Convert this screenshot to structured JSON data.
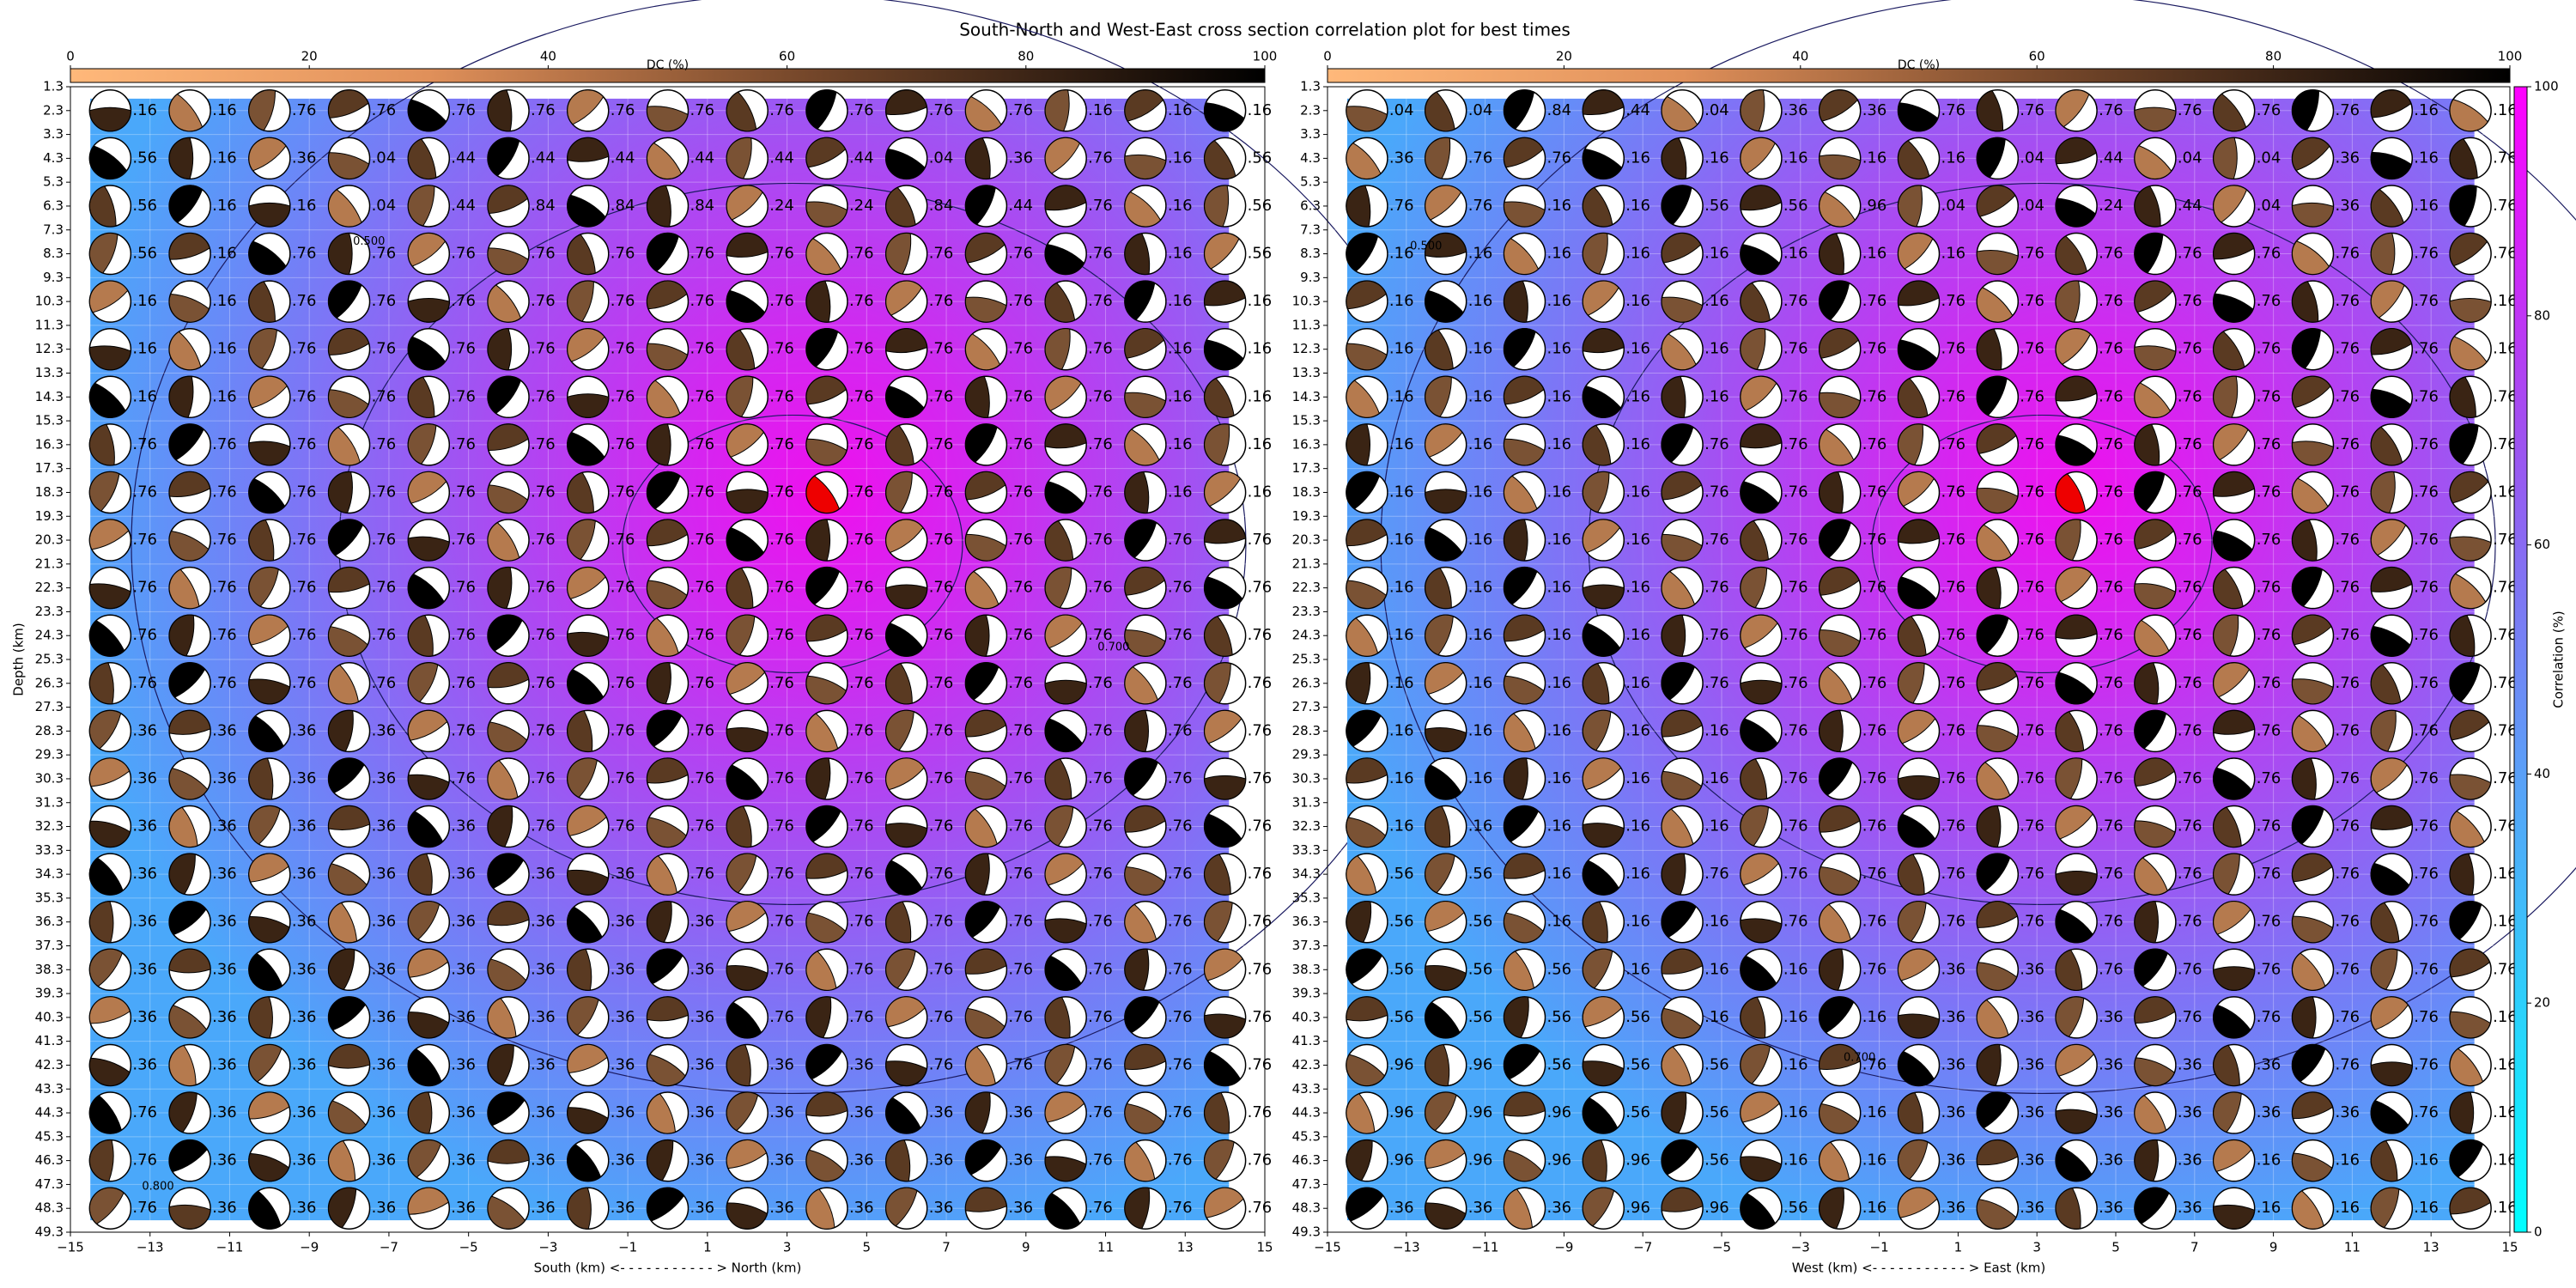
{
  "figure": {
    "title": "South-North and West-East cross section correlation plot for best times"
  },
  "chart_data": [
    {
      "type": "beachball",
      "xlabel": "South (km) <- - - - - - - - - - - > North (km)",
      "ylabel": "Depth (km)",
      "xlim": [
        -15,
        15
      ],
      "ylim": [
        49.3,
        1.3
      ],
      "grid": true,
      "xticks": [
        {
          "value": -15,
          "label": "−15"
        },
        {
          "value": -13,
          "label": "−13"
        },
        {
          "value": -11,
          "label": "−11"
        },
        {
          "value": -9,
          "label": "−9"
        },
        {
          "value": -7,
          "label": "−7"
        },
        {
          "value": -5,
          "label": "−5"
        },
        {
          "value": -3,
          "label": "−3"
        },
        {
          "value": -1,
          "label": "−1"
        },
        1,
        3,
        5,
        7,
        9,
        11,
        13,
        15
      ],
      "yticks": [
        1.3,
        2.3,
        3.3,
        4.3,
        5.3,
        6.3,
        7.3,
        8.3,
        9.3,
        10.3,
        11.3,
        12.3,
        13.3,
        14.3,
        15.3,
        16.3,
        17.3,
        18.3,
        19.3,
        20.3,
        21.3,
        22.3,
        23.3,
        24.3,
        25.3,
        26.3,
        27.3,
        28.3,
        29.3,
        30.3,
        31.3,
        32.3,
        33.3,
        34.3,
        35.3,
        36.3,
        37.3,
        38.3,
        39.3,
        40.3,
        41.3,
        42.3,
        43.3,
        44.3,
        45.3,
        46.3,
        47.3,
        48.3,
        49.3
      ],
      "x": [
        -14,
        -12,
        -10,
        -8,
        -6,
        -4,
        -2,
        0,
        2,
        4,
        6,
        8,
        10,
        12,
        14
      ],
      "depths": [
        2.3,
        4.3,
        6.3,
        8.3,
        10.3,
        12.3,
        14.3,
        16.3,
        18.3,
        20.3,
        22.3,
        24.3,
        26.3,
        28.3,
        30.3,
        32.3,
        34.3,
        36.3,
        38.3,
        40.3,
        42.3,
        44.3,
        46.3,
        48.3
      ],
      "best": [
        4,
        18.3
      ],
      "contour_labels": [
        "0.500",
        "0.700",
        "0.800"
      ],
      "dc_colorbar": {
        "label": "DC (%)",
        "lim": [
          0,
          100
        ],
        "ticks": [
          0,
          20,
          40,
          60,
          80,
          100
        ]
      },
      "labels": [
        [
          ".16",
          ".16",
          ".76",
          ".76",
          ".76",
          ".76",
          ".76",
          ".76",
          ".76",
          ".76",
          ".76",
          ".76",
          ".16",
          ".16",
          ".16"
        ],
        [
          ".56",
          ".16",
          ".36",
          ".04",
          ".44",
          ".44",
          ".44",
          ".44",
          ".44",
          ".44",
          ".04",
          ".36",
          ".76",
          ".16",
          ".56"
        ],
        [
          ".56",
          ".16",
          ".16",
          ".04",
          ".44",
          ".84",
          ".84",
          ".84",
          ".24",
          ".24",
          ".84",
          ".44",
          ".76",
          ".16",
          ".56"
        ],
        [
          ".56",
          ".16",
          ".76",
          ".76",
          ".76",
          ".76",
          ".76",
          ".76",
          ".76",
          ".76",
          ".76",
          ".76",
          ".76",
          ".16",
          ".56"
        ],
        [
          ".16",
          ".16",
          ".76",
          ".76",
          ".76",
          ".76",
          ".76",
          ".76",
          ".76",
          ".76",
          ".76",
          ".76",
          ".76",
          ".16",
          ".16"
        ],
        [
          ".16",
          ".16",
          ".76",
          ".76",
          ".76",
          ".76",
          ".76",
          ".76",
          ".76",
          ".76",
          ".76",
          ".76",
          ".76",
          ".16",
          ".16"
        ],
        [
          ".16",
          ".16",
          ".76",
          ".76",
          ".76",
          ".76",
          ".76",
          ".76",
          ".76",
          ".76",
          ".76",
          ".76",
          ".76",
          ".16",
          ".16"
        ],
        [
          ".76",
          ".76",
          ".76",
          ".76",
          ".76",
          ".76",
          ".76",
          ".76",
          ".76",
          ".76",
          ".76",
          ".76",
          ".76",
          ".16",
          ".16"
        ],
        [
          ".76",
          ".76",
          ".76",
          ".76",
          ".76",
          ".76",
          ".76",
          ".76",
          ".76",
          ".76",
          ".76",
          ".76",
          ".76",
          ".16",
          ".16"
        ],
        [
          ".76",
          ".76",
          ".76",
          ".76",
          ".76",
          ".76",
          ".76",
          ".76",
          ".76",
          ".76",
          ".76",
          ".76",
          ".76",
          ".76",
          ".76"
        ],
        [
          ".76",
          ".76",
          ".76",
          ".76",
          ".76",
          ".76",
          ".76",
          ".76",
          ".76",
          ".76",
          ".76",
          ".76",
          ".76",
          ".76",
          ".76"
        ],
        [
          ".76",
          ".76",
          ".76",
          ".76",
          ".76",
          ".76",
          ".76",
          ".76",
          ".76",
          ".76",
          ".76",
          ".76",
          ".76",
          ".76",
          ".76"
        ],
        [
          ".76",
          ".76",
          ".76",
          ".76",
          ".76",
          ".76",
          ".76",
          ".76",
          ".76",
          ".76",
          ".76",
          ".76",
          ".76",
          ".76",
          ".76"
        ],
        [
          ".36",
          ".36",
          ".36",
          ".36",
          ".76",
          ".76",
          ".76",
          ".76",
          ".76",
          ".76",
          ".76",
          ".76",
          ".76",
          ".76",
          ".76"
        ],
        [
          ".36",
          ".36",
          ".36",
          ".36",
          ".76",
          ".76",
          ".76",
          ".76",
          ".76",
          ".76",
          ".76",
          ".76",
          ".76",
          ".76",
          ".76"
        ],
        [
          ".36",
          ".36",
          ".36",
          ".36",
          ".36",
          ".76",
          ".76",
          ".76",
          ".76",
          ".76",
          ".76",
          ".76",
          ".76",
          ".76",
          ".76"
        ],
        [
          ".36",
          ".36",
          ".36",
          ".36",
          ".36",
          ".36",
          ".36",
          ".76",
          ".76",
          ".76",
          ".76",
          ".76",
          ".76",
          ".76",
          ".76"
        ],
        [
          ".36",
          ".36",
          ".36",
          ".36",
          ".36",
          ".36",
          ".36",
          ".36",
          ".76",
          ".76",
          ".76",
          ".76",
          ".76",
          ".76",
          ".76"
        ],
        [
          ".36",
          ".36",
          ".36",
          ".36",
          ".36",
          ".36",
          ".36",
          ".36",
          ".76",
          ".76",
          ".76",
          ".76",
          ".76",
          ".76",
          ".76"
        ],
        [
          ".36",
          ".36",
          ".36",
          ".36",
          ".36",
          ".36",
          ".36",
          ".36",
          ".76",
          ".76",
          ".76",
          ".76",
          ".76",
          ".76",
          ".76"
        ],
        [
          ".36",
          ".36",
          ".36",
          ".36",
          ".36",
          ".36",
          ".36",
          ".36",
          ".36",
          ".36",
          ".76",
          ".76",
          ".76",
          ".76",
          ".76"
        ],
        [
          ".76",
          ".36",
          ".36",
          ".36",
          ".36",
          ".36",
          ".36",
          ".36",
          ".36",
          ".36",
          ".36",
          ".36",
          ".76",
          ".76",
          ".76"
        ],
        [
          ".76",
          ".36",
          ".36",
          ".36",
          ".36",
          ".36",
          ".36",
          ".36",
          ".36",
          ".36",
          ".36",
          ".36",
          ".76",
          ".76",
          ".76"
        ],
        [
          ".76",
          ".36",
          ".36",
          ".36",
          ".36",
          ".36",
          ".36",
          ".36",
          ".36",
          ".36",
          ".36",
          ".36",
          ".76",
          ".76",
          ".76"
        ]
      ]
    },
    {
      "type": "beachball",
      "xlabel": "West (km) <- - - - - - - - - - - > East (km)",
      "xlim": [
        -15,
        15
      ],
      "ylim": [
        49.3,
        1.3
      ],
      "grid": true,
      "xticks": [
        {
          "value": -15,
          "label": "−15"
        },
        {
          "value": -13,
          "label": "−13"
        },
        {
          "value": -11,
          "label": "−11"
        },
        {
          "value": -9,
          "label": "−9"
        },
        {
          "value": -7,
          "label": "−7"
        },
        {
          "value": -5,
          "label": "−5"
        },
        {
          "value": -3,
          "label": "−3"
        },
        {
          "value": -1,
          "label": "−1"
        },
        1,
        3,
        5,
        7,
        9,
        11,
        13,
        15
      ],
      "yticks": [
        1.3,
        2.3,
        3.3,
        4.3,
        5.3,
        6.3,
        7.3,
        8.3,
        9.3,
        10.3,
        11.3,
        12.3,
        13.3,
        14.3,
        15.3,
        16.3,
        17.3,
        18.3,
        19.3,
        20.3,
        21.3,
        22.3,
        23.3,
        24.3,
        25.3,
        26.3,
        27.3,
        28.3,
        29.3,
        30.3,
        31.3,
        32.3,
        33.3,
        34.3,
        35.3,
        36.3,
        37.3,
        38.3,
        39.3,
        40.3,
        41.3,
        42.3,
        43.3,
        44.3,
        45.3,
        46.3,
        47.3,
        48.3,
        49.3
      ],
      "x": [
        -14,
        -12,
        -10,
        -8,
        -6,
        -4,
        -2,
        0,
        2,
        4,
        6,
        8,
        10,
        12,
        14
      ],
      "depths": [
        2.3,
        4.3,
        6.3,
        8.3,
        10.3,
        12.3,
        14.3,
        16.3,
        18.3,
        20.3,
        22.3,
        24.3,
        26.3,
        28.3,
        30.3,
        32.3,
        34.3,
        36.3,
        38.3,
        40.3,
        42.3,
        44.3,
        46.3,
        48.3
      ],
      "best": [
        4,
        18.3
      ],
      "contour_labels": [
        "0.500",
        "0.700"
      ],
      "dc_colorbar": {
        "label": "DC (%)",
        "lim": [
          0,
          100
        ],
        "ticks": [
          0,
          20,
          40,
          60,
          80,
          100
        ]
      },
      "corr_colorbar": {
        "label": "Correlation (%)",
        "lim": [
          0,
          100
        ],
        "ticks": [
          0,
          20,
          40,
          60,
          80,
          100
        ]
      },
      "labels": [
        [
          ".04",
          ".04",
          ".84",
          ".44",
          ".04",
          ".36",
          ".36",
          ".76",
          ".76",
          ".76",
          ".76",
          ".76",
          ".76",
          ".16",
          ".16"
        ],
        [
          ".36",
          ".76",
          ".76",
          ".16",
          ".16",
          ".16",
          ".16",
          ".16",
          ".04",
          ".44",
          ".04",
          ".04",
          ".36",
          ".16",
          ".76"
        ],
        [
          ".76",
          ".76",
          ".16",
          ".16",
          ".56",
          ".56",
          ".96",
          ".04",
          ".04",
          ".24",
          ".44",
          ".04",
          ".36",
          ".16",
          ".76"
        ],
        [
          ".16",
          ".16",
          ".16",
          ".16",
          ".16",
          ".16",
          ".16",
          ".16",
          ".76",
          ".76",
          ".76",
          ".76",
          ".76",
          ".76",
          ".76"
        ],
        [
          ".16",
          ".16",
          ".16",
          ".16",
          ".16",
          ".76",
          ".76",
          ".76",
          ".76",
          ".76",
          ".76",
          ".76",
          ".76",
          ".76",
          ".16"
        ],
        [
          ".16",
          ".16",
          ".16",
          ".16",
          ".16",
          ".76",
          ".76",
          ".76",
          ".76",
          ".76",
          ".76",
          ".76",
          ".76",
          ".76",
          ".16"
        ],
        [
          ".16",
          ".16",
          ".16",
          ".16",
          ".16",
          ".76",
          ".76",
          ".76",
          ".76",
          ".76",
          ".76",
          ".76",
          ".76",
          ".76",
          ".76"
        ],
        [
          ".16",
          ".16",
          ".16",
          ".16",
          ".76",
          ".76",
          ".76",
          ".76",
          ".76",
          ".76",
          ".76",
          ".76",
          ".76",
          ".76",
          ".76"
        ],
        [
          ".16",
          ".16",
          ".16",
          ".16",
          ".76",
          ".76",
          ".76",
          ".76",
          ".76",
          ".76",
          ".76",
          ".76",
          ".76",
          ".76",
          ".16"
        ],
        [
          ".16",
          ".16",
          ".16",
          ".16",
          ".76",
          ".76",
          ".76",
          ".76",
          ".76",
          ".76",
          ".76",
          ".76",
          ".76",
          ".76",
          ".76"
        ],
        [
          ".16",
          ".16",
          ".16",
          ".16",
          ".76",
          ".76",
          ".76",
          ".76",
          ".76",
          ".76",
          ".76",
          ".76",
          ".76",
          ".76",
          ".76"
        ],
        [
          ".16",
          ".16",
          ".16",
          ".16",
          ".76",
          ".76",
          ".76",
          ".76",
          ".76",
          ".76",
          ".76",
          ".76",
          ".76",
          ".76",
          ".76"
        ],
        [
          ".16",
          ".16",
          ".16",
          ".16",
          ".76",
          ".76",
          ".76",
          ".76",
          ".76",
          ".76",
          ".76",
          ".76",
          ".76",
          ".76",
          ".76"
        ],
        [
          ".16",
          ".16",
          ".16",
          ".16",
          ".16",
          ".76",
          ".76",
          ".76",
          ".76",
          ".76",
          ".76",
          ".76",
          ".76",
          ".76",
          ".76"
        ],
        [
          ".16",
          ".16",
          ".16",
          ".16",
          ".16",
          ".76",
          ".76",
          ".76",
          ".76",
          ".76",
          ".76",
          ".76",
          ".76",
          ".76",
          ".76"
        ],
        [
          ".16",
          ".16",
          ".16",
          ".16",
          ".16",
          ".76",
          ".76",
          ".76",
          ".76",
          ".76",
          ".76",
          ".76",
          ".76",
          ".76",
          ".76"
        ],
        [
          ".56",
          ".56",
          ".16",
          ".16",
          ".76",
          ".76",
          ".76",
          ".76",
          ".76",
          ".76",
          ".76",
          ".76",
          ".76",
          ".76",
          ".16"
        ],
        [
          ".56",
          ".56",
          ".16",
          ".16",
          ".16",
          ".76",
          ".76",
          ".76",
          ".76",
          ".76",
          ".76",
          ".76",
          ".76",
          ".76",
          ".16"
        ],
        [
          ".56",
          ".56",
          ".56",
          ".16",
          ".16",
          ".16",
          ".76",
          ".36",
          ".36",
          ".76",
          ".76",
          ".76",
          ".76",
          ".76",
          ".76"
        ],
        [
          ".56",
          ".56",
          ".56",
          ".56",
          ".16",
          ".16",
          ".16",
          ".36",
          ".36",
          ".36",
          ".76",
          ".76",
          ".76",
          ".76",
          ".16"
        ],
        [
          ".96",
          ".96",
          ".56",
          ".56",
          ".56",
          ".16",
          ".76",
          ".36",
          ".36",
          ".36",
          ".36",
          ".36",
          ".76",
          ".76",
          ".16"
        ],
        [
          ".96",
          ".96",
          ".96",
          ".56",
          ".56",
          ".16",
          ".16",
          ".36",
          ".36",
          ".36",
          ".36",
          ".36",
          ".36",
          ".76",
          ".16"
        ],
        [
          ".96",
          ".96",
          ".96",
          ".96",
          ".56",
          ".16",
          ".16",
          ".36",
          ".36",
          ".36",
          ".36",
          ".16",
          ".16",
          ".16",
          ".16"
        ],
        [
          ".36",
          ".36",
          ".36",
          ".96",
          ".96",
          ".56",
          ".16",
          ".36",
          ".36",
          ".36",
          ".36",
          ".16",
          ".16",
          ".16",
          ".16"
        ]
      ]
    }
  ]
}
